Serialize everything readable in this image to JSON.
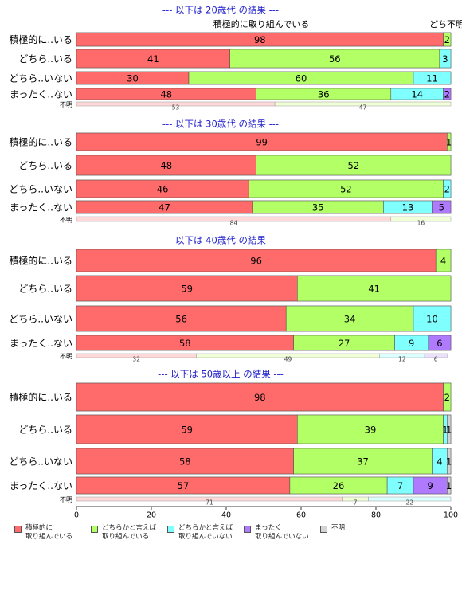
{
  "colors": {
    "band_title": "#1f1fcc",
    "categories": [
      "#ff6b6b",
      "#b3ff66",
      "#80ffff",
      "#b07aff",
      "#d4d4d4"
    ]
  },
  "chart_data": {
    "type": "bar",
    "orientation": "horizontal",
    "stacked": true,
    "xlim": [
      0,
      100
    ],
    "xticks": [
      0,
      20,
      40,
      60,
      80,
      100
    ],
    "legend": {
      "position": "bottom",
      "entries": [
        "積極的に\n取り組んでいる",
        "どちらかと言えば\n取り組んでいる",
        "どちらかと言えば\n取り組んでいない",
        "まったく\n取り組んでいない",
        "不明"
      ]
    },
    "top_header": "積極的に取り組んでいる",
    "top_header_right": "どち不明",
    "panels": [
      {
        "title": "--- 以下は 20歳代 の結果 ---",
        "rows": [
          {
            "label": "積極的に..いる",
            "values": [
              98,
              2,
              0,
              0,
              0
            ]
          },
          {
            "label": "どちら..いる",
            "values": [
              41,
              56,
              3,
              0,
              0
            ]
          },
          {
            "label": "どちら..いない",
            "values": [
              30,
              60,
              11,
              0,
              0
            ]
          },
          {
            "label": "まったく..ない",
            "values": [
              48,
              36,
              14,
              2,
              0
            ]
          }
        ],
        "unknown": {
          "label": "不明",
          "values": [
            53,
            47
          ]
        }
      },
      {
        "title": "--- 以下は 30歳代 の結果 ---",
        "rows": [
          {
            "label": "積極的に..いる",
            "values": [
              99,
              1,
              0,
              0,
              0
            ]
          },
          {
            "label": "どちら..いる",
            "values": [
              48,
              52,
              0,
              0,
              0
            ]
          },
          {
            "label": "どちら..いない",
            "values": [
              46,
              52,
              2,
              0,
              0
            ]
          },
          {
            "label": "まったく..ない",
            "values": [
              47,
              35,
              13,
              5,
              0
            ]
          }
        ],
        "unknown": {
          "label": "不明",
          "values": [
            84,
            16
          ]
        }
      },
      {
        "title": "--- 以下は 40歳代 の結果 ---",
        "rows": [
          {
            "label": "積極的に..いる",
            "values": [
              96,
              4,
              0,
              0,
              0
            ]
          },
          {
            "label": "どちら..いる",
            "values": [
              59,
              41,
              0,
              0,
              0
            ]
          },
          {
            "label": "どちら..いない",
            "values": [
              56,
              34,
              10,
              0,
              0
            ]
          },
          {
            "label": "まったく..ない",
            "values": [
              58,
              27,
              9,
              6,
              0
            ]
          }
        ],
        "unknown": {
          "label": "不明",
          "values": [
            32,
            49,
            12,
            6
          ]
        }
      },
      {
        "title": "--- 以下は 50歳以上 の結果 ---",
        "rows": [
          {
            "label": "積極的に..いる",
            "values": [
              98,
              2,
              0,
              0,
              0
            ]
          },
          {
            "label": "どちら..いる",
            "values": [
              59,
              39,
              1,
              0,
              1
            ]
          },
          {
            "label": "どちら..いない",
            "values": [
              58,
              37,
              4,
              0,
              1
            ]
          },
          {
            "label": "まったく..ない",
            "values": [
              57,
              26,
              7,
              9,
              1
            ]
          }
        ],
        "unknown": {
          "label": "不明",
          "values": [
            71,
            7,
            22
          ]
        }
      }
    ]
  }
}
